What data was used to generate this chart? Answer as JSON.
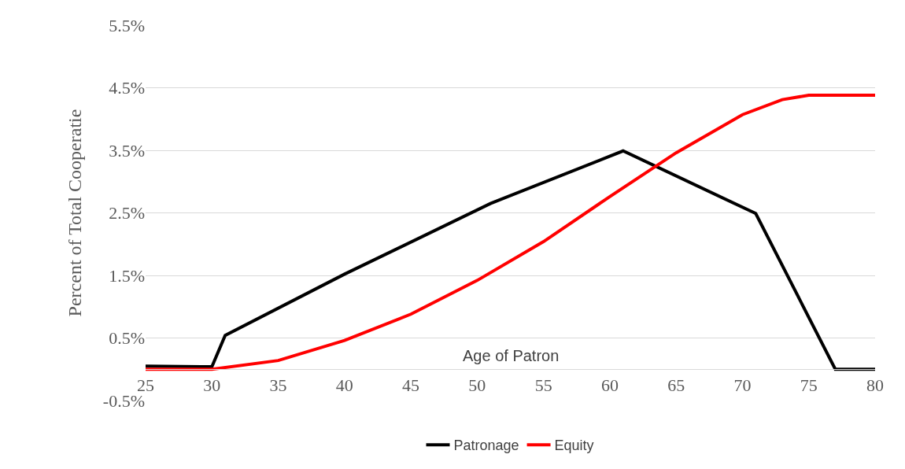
{
  "chart_data": {
    "type": "line",
    "xlabel": "Age of Patron",
    "ylabel": "Percent of Total Cooperatie",
    "xlim": [
      25,
      80
    ],
    "xticks": [
      25,
      30,
      35,
      40,
      45,
      50,
      55,
      60,
      65,
      70,
      75,
      80
    ],
    "ylim": [
      -0.5,
      5.5
    ],
    "yticks": [
      {
        "value": -0.5,
        "label": "-0.5%"
      },
      {
        "value": 0.5,
        "label": "0.5%"
      },
      {
        "value": 1.5,
        "label": "1.5%"
      },
      {
        "value": 2.5,
        "label": "2.5%"
      },
      {
        "value": 3.5,
        "label": "3.5%"
      },
      {
        "value": 4.5,
        "label": "4.5%"
      },
      {
        "value": 5.5,
        "label": "5.5%"
      }
    ],
    "grid": "y",
    "legend": "bottom",
    "marker": "none",
    "line_style": "solid",
    "series": [
      {
        "name": "Patronage",
        "color": "#000000",
        "x": [
          25,
          30,
          31,
          40,
          51,
          61,
          71,
          77,
          80
        ],
        "values": [
          0.05,
          0.04,
          0.54,
          1.52,
          2.65,
          3.49,
          2.49,
          0,
          0
        ]
      },
      {
        "name": "Equity",
        "color": "#ff0000",
        "x": [
          25,
          30,
          35,
          40,
          45,
          50,
          55,
          60,
          65,
          70,
          73,
          75,
          80
        ],
        "values": [
          0,
          0,
          0.14,
          0.46,
          0.88,
          1.42,
          2.04,
          2.76,
          3.46,
          4.07,
          4.31,
          4.38,
          4.38
        ]
      }
    ]
  }
}
